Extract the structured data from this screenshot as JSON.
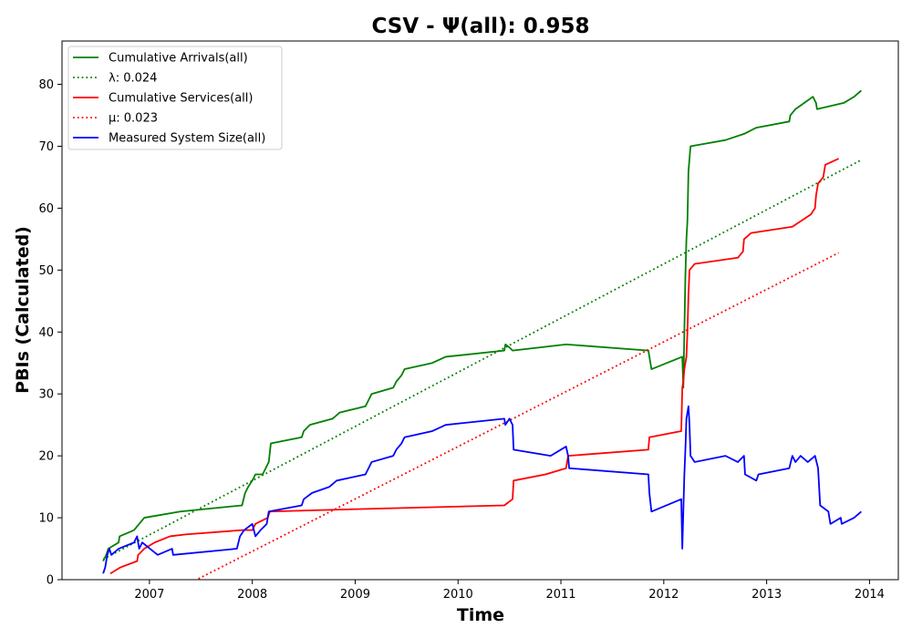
{
  "chart_data": {
    "type": "line",
    "title": "CSV -  Ψ(all): 0.958",
    "xlabel": "Time",
    "ylabel": "PBIs (Calculated)",
    "xlim": [
      2006.15,
      2014.28
    ],
    "ylim": [
      0,
      87
    ],
    "xticks": [
      {
        "value": 2007,
        "label": "2007"
      },
      {
        "value": 2008,
        "label": "2008"
      },
      {
        "value": 2009,
        "label": "2009"
      },
      {
        "value": 2010,
        "label": "2010"
      },
      {
        "value": 2011,
        "label": "2011"
      },
      {
        "value": 2012,
        "label": "2012"
      },
      {
        "value": 2013,
        "label": "2013"
      },
      {
        "value": 2014,
        "label": "2014"
      }
    ],
    "yticks": [
      0,
      10,
      20,
      30,
      40,
      50,
      60,
      70,
      80
    ],
    "grid": false,
    "legend_position": "top-left",
    "series": [
      {
        "name": "Cumulative Arrivals(all)",
        "color": "#008000",
        "style": "solid",
        "points": [
          [
            2006.55,
            3
          ],
          [
            2006.58,
            4
          ],
          [
            2006.6,
            5
          ],
          [
            2006.7,
            6
          ],
          [
            2006.71,
            7
          ],
          [
            2006.85,
            8
          ],
          [
            2006.9,
            9
          ],
          [
            2006.95,
            10
          ],
          [
            2007.3,
            11
          ],
          [
            2007.9,
            12
          ],
          [
            2007.93,
            14
          ],
          [
            2007.96,
            15
          ],
          [
            2008.0,
            16
          ],
          [
            2008.03,
            17
          ],
          [
            2008.1,
            17
          ],
          [
            2008.13,
            18
          ],
          [
            2008.16,
            19
          ],
          [
            2008.18,
            22
          ],
          [
            2008.48,
            23
          ],
          [
            2008.5,
            24
          ],
          [
            2008.56,
            25
          ],
          [
            2008.78,
            26
          ],
          [
            2008.85,
            27
          ],
          [
            2009.1,
            28
          ],
          [
            2009.13,
            29
          ],
          [
            2009.16,
            30
          ],
          [
            2009.37,
            31
          ],
          [
            2009.4,
            32
          ],
          [
            2009.45,
            33
          ],
          [
            2009.48,
            34
          ],
          [
            2009.75,
            35
          ],
          [
            2009.88,
            36
          ],
          [
            2010.45,
            37
          ],
          [
            2010.46,
            38
          ],
          [
            2010.5,
            37.5
          ],
          [
            2010.53,
            37
          ],
          [
            2011.05,
            38
          ],
          [
            2011.85,
            37
          ],
          [
            2011.88,
            34
          ],
          [
            2012.18,
            36
          ],
          [
            2012.19,
            31
          ],
          [
            2012.21,
            49
          ],
          [
            2012.22,
            55
          ],
          [
            2012.23,
            58
          ],
          [
            2012.24,
            66
          ],
          [
            2012.25,
            68
          ],
          [
            2012.26,
            70
          ],
          [
            2012.6,
            71
          ],
          [
            2012.78,
            72
          ],
          [
            2012.9,
            73
          ],
          [
            2013.22,
            74
          ],
          [
            2013.23,
            75
          ],
          [
            2013.28,
            76
          ],
          [
            2013.45,
            78
          ],
          [
            2013.48,
            77
          ],
          [
            2013.49,
            76
          ],
          [
            2013.75,
            77
          ],
          [
            2013.85,
            78
          ],
          [
            2013.92,
            79
          ]
        ]
      },
      {
        "name": "λ: 0.024",
        "color": "#008000",
        "style": "dotted",
        "points": [
          [
            2006.55,
            3.3
          ],
          [
            2013.92,
            67.8
          ]
        ]
      },
      {
        "name": "Cumulative Services(all)",
        "color": "#ff0000",
        "style": "solid",
        "points": [
          [
            2006.62,
            1
          ],
          [
            2006.72,
            2
          ],
          [
            2006.88,
            3
          ],
          [
            2006.89,
            4
          ],
          [
            2006.95,
            5
          ],
          [
            2007.05,
            6
          ],
          [
            2007.2,
            7
          ],
          [
            2007.35,
            7.3
          ],
          [
            2007.9,
            8
          ],
          [
            2008.0,
            8
          ],
          [
            2008.03,
            9
          ],
          [
            2008.15,
            10
          ],
          [
            2008.17,
            11
          ],
          [
            2008.8,
            11.3
          ],
          [
            2010.45,
            12
          ],
          [
            2010.53,
            13
          ],
          [
            2010.54,
            16
          ],
          [
            2010.85,
            17
          ],
          [
            2011.05,
            18
          ],
          [
            2011.07,
            20
          ],
          [
            2011.85,
            21
          ],
          [
            2011.86,
            23
          ],
          [
            2012.17,
            24
          ],
          [
            2012.18,
            31
          ],
          [
            2012.19,
            32
          ],
          [
            2012.2,
            34
          ],
          [
            2012.22,
            36
          ],
          [
            2012.23,
            40
          ],
          [
            2012.24,
            46
          ],
          [
            2012.25,
            50
          ],
          [
            2012.3,
            51
          ],
          [
            2012.72,
            52
          ],
          [
            2012.77,
            53
          ],
          [
            2012.78,
            55
          ],
          [
            2012.85,
            56
          ],
          [
            2013.25,
            57
          ],
          [
            2013.43,
            59
          ],
          [
            2013.47,
            60
          ],
          [
            2013.48,
            62
          ],
          [
            2013.5,
            64
          ],
          [
            2013.55,
            65
          ],
          [
            2013.57,
            67
          ],
          [
            2013.7,
            68
          ]
        ]
      },
      {
        "name": "μ: 0.023",
        "color": "#ff0000",
        "style": "dotted",
        "points": [
          [
            2007.4,
            -0.5
          ],
          [
            2013.7,
            52.8
          ]
        ]
      },
      {
        "name": "Measured System Size(all)",
        "color": "#0000ff",
        "style": "solid",
        "points": [
          [
            2006.55,
            1
          ],
          [
            2006.57,
            2
          ],
          [
            2006.59,
            4
          ],
          [
            2006.61,
            5
          ],
          [
            2006.63,
            4
          ],
          [
            2006.7,
            5
          ],
          [
            2006.85,
            6
          ],
          [
            2006.88,
            7
          ],
          [
            2006.9,
            5
          ],
          [
            2006.93,
            6
          ],
          [
            2007.08,
            4
          ],
          [
            2007.22,
            5
          ],
          [
            2007.23,
            4
          ],
          [
            2007.85,
            5
          ],
          [
            2007.88,
            7
          ],
          [
            2007.92,
            8
          ],
          [
            2008.0,
            9
          ],
          [
            2008.03,
            7
          ],
          [
            2008.08,
            8
          ],
          [
            2008.14,
            9
          ],
          [
            2008.16,
            11
          ],
          [
            2008.48,
            12
          ],
          [
            2008.5,
            13
          ],
          [
            2008.58,
            14
          ],
          [
            2008.75,
            15
          ],
          [
            2008.82,
            16
          ],
          [
            2009.1,
            17
          ],
          [
            2009.13,
            18
          ],
          [
            2009.16,
            19
          ],
          [
            2009.37,
            20
          ],
          [
            2009.4,
            21
          ],
          [
            2009.45,
            22
          ],
          [
            2009.48,
            23
          ],
          [
            2009.75,
            24
          ],
          [
            2009.88,
            25
          ],
          [
            2010.45,
            26
          ],
          [
            2010.46,
            25
          ],
          [
            2010.5,
            26
          ],
          [
            2010.53,
            25
          ],
          [
            2010.54,
            21
          ],
          [
            2010.9,
            20
          ],
          [
            2011.05,
            21.5
          ],
          [
            2011.07,
            20
          ],
          [
            2011.08,
            18
          ],
          [
            2011.85,
            17
          ],
          [
            2011.86,
            14
          ],
          [
            2011.88,
            11
          ],
          [
            2012.17,
            13
          ],
          [
            2012.18,
            5
          ],
          [
            2012.19,
            11
          ],
          [
            2012.2,
            17
          ],
          [
            2012.21,
            21
          ],
          [
            2012.22,
            26
          ],
          [
            2012.23,
            27
          ],
          [
            2012.24,
            28
          ],
          [
            2012.25,
            25
          ],
          [
            2012.26,
            20
          ],
          [
            2012.3,
            19
          ],
          [
            2012.6,
            20
          ],
          [
            2012.72,
            19
          ],
          [
            2012.78,
            20
          ],
          [
            2012.79,
            17
          ],
          [
            2012.9,
            16
          ],
          [
            2012.92,
            17
          ],
          [
            2013.22,
            18
          ],
          [
            2013.25,
            20
          ],
          [
            2013.28,
            19
          ],
          [
            2013.33,
            20
          ],
          [
            2013.4,
            19
          ],
          [
            2013.47,
            20
          ],
          [
            2013.5,
            18
          ],
          [
            2013.52,
            12
          ],
          [
            2013.6,
            11
          ],
          [
            2013.62,
            9
          ],
          [
            2013.72,
            10
          ],
          [
            2013.73,
            9
          ],
          [
            2013.85,
            10
          ],
          [
            2013.92,
            11
          ]
        ]
      }
    ]
  }
}
